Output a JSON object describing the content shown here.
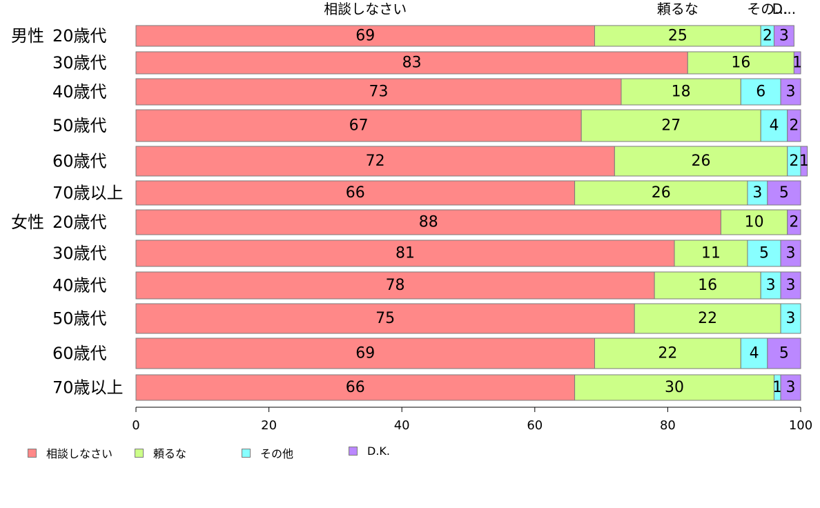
{
  "chart_data": {
    "type": "bar",
    "orientation": "horizontal",
    "stacked": true,
    "xlim": [
      0,
      100
    ],
    "x_ticks": [
      "0",
      "20",
      "40",
      "60",
      "80",
      "100"
    ],
    "column_headers": [
      "相談しなさい",
      "頼るな",
      "その...",
      "D..."
    ],
    "series": [
      {
        "name": "相談しなさい",
        "color": "#ff8888",
        "values": [
          69,
          83,
          73,
          67,
          72,
          66,
          88,
          81,
          78,
          75,
          69,
          66
        ]
      },
      {
        "name": "頼るな",
        "color": "#ccff88",
        "values": [
          25,
          16,
          18,
          27,
          26,
          26,
          10,
          11,
          16,
          22,
          22,
          30
        ]
      },
      {
        "name": "その他",
        "color": "#88ffff",
        "values": [
          2,
          0,
          6,
          4,
          2,
          3,
          0,
          5,
          3,
          3,
          4,
          1
        ]
      },
      {
        "name": "D.K.",
        "color": "#bb88ff",
        "values": [
          3,
          1,
          3,
          2,
          1,
          5,
          2,
          3,
          3,
          0,
          5,
          3
        ]
      }
    ],
    "rows": [
      {
        "group": "男性",
        "label": "20歳代"
      },
      {
        "group": "",
        "label": "30歳代"
      },
      {
        "group": "",
        "label": "40歳代"
      },
      {
        "group": "",
        "label": "50歳代"
      },
      {
        "group": "",
        "label": "60歳代"
      },
      {
        "group": "",
        "label": "70歳以上"
      },
      {
        "group": "女性",
        "label": "20歳代"
      },
      {
        "group": "",
        "label": "30歳代"
      },
      {
        "group": "",
        "label": "40歳代"
      },
      {
        "group": "",
        "label": "50歳代"
      },
      {
        "group": "",
        "label": "60歳代"
      },
      {
        "group": "",
        "label": "70歳以上"
      }
    ],
    "legend_position": "bottom-left"
  }
}
